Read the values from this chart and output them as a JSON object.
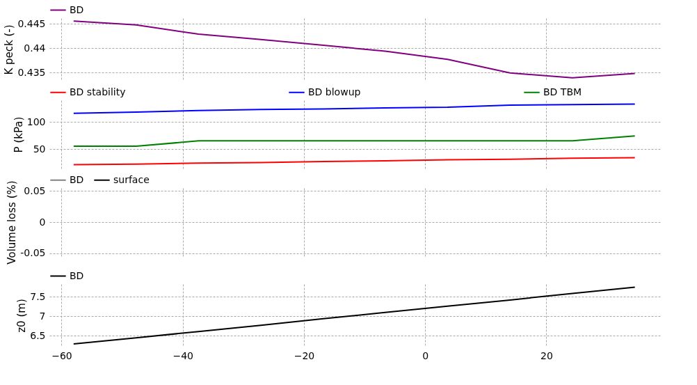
{
  "chart_data": [
    {
      "type": "line",
      "ylabel": "K peck (-)",
      "x": [
        -58,
        -47.7,
        -37.4,
        -27.1,
        -16.8,
        -6.6,
        3.7,
        14.0,
        24.3,
        34.6
      ],
      "xlim": [
        -62,
        39
      ],
      "xticks": [
        -60,
        -40,
        -20,
        0,
        20
      ],
      "ylim": [
        0.4333,
        0.4462
      ],
      "yticks": [
        0.435,
        0.44,
        0.445
      ],
      "grid": true,
      "legend": "top left",
      "tick_labels": "y",
      "series": [
        {
          "name": "BD",
          "color": "#800080",
          "values": [
            0.4456,
            0.4448,
            0.4429,
            0.4418,
            0.4406,
            0.4394,
            0.4377,
            0.4349,
            0.4339,
            0.4348
          ]
        }
      ]
    },
    {
      "type": "line",
      "ylabel": "P (kPa)",
      "x": [
        -58,
        -47.7,
        -37.4,
        -27.1,
        -16.8,
        -6.6,
        3.7,
        14.0,
        24.3,
        34.6
      ],
      "xlim": [
        -62,
        39
      ],
      "xticks": [
        -60,
        -40,
        -20,
        0,
        20
      ],
      "ylim": [
        14,
        140
      ],
      "yticks": [
        50,
        100
      ],
      "grid": true,
      "legend": "top",
      "tick_labels": "y",
      "series": [
        {
          "name": "BD stability",
          "color": "#ff0000",
          "values": [
            21,
            22,
            24,
            25,
            27,
            28,
            30,
            31,
            33,
            34
          ]
        },
        {
          "name": "BD blowup",
          "color": "#0000ff",
          "values": [
            116,
            118,
            121,
            123,
            124,
            126,
            127,
            131,
            132,
            133
          ]
        },
        {
          "name": "BD TBM",
          "color": "#008000",
          "values": [
            55,
            55,
            65,
            65,
            65,
            65,
            65,
            65,
            65,
            74
          ]
        }
      ]
    },
    {
      "type": "line",
      "ylabel": "Volume loss (%)",
      "ylim": [
        -0.055,
        0.055
      ],
      "yticks": [
        -0.05,
        0,
        0.05
      ],
      "grid": true,
      "legend": "top left",
      "tick_labels": "y",
      "series": [
        {
          "name": "BD",
          "color": "#808080"
        },
        {
          "name": "surface",
          "color": "#000000"
        }
      ]
    },
    {
      "type": "line",
      "ylabel": "z0 (m)",
      "x": [
        -58,
        -47.7,
        -37.4,
        -27.1,
        -16.8,
        -6.6,
        3.7,
        14.0,
        24.3,
        34.6
      ],
      "xlim": [
        -62,
        39
      ],
      "xticks": [
        {
          "value": -60,
          "label": "−60"
        },
        {
          "value": -40,
          "label": "−40"
        },
        {
          "value": -20,
          "label": "−20"
        },
        0,
        20
      ],
      "ylim": [
        6.22,
        7.83
      ],
      "yticks": [
        6.5,
        7,
        7.5
      ],
      "grid": true,
      "legend": "top left",
      "series": [
        {
          "name": "BD",
          "color": "#000000",
          "values": [
            6.29,
            6.45,
            6.61,
            6.77,
            6.94,
            7.1,
            7.26,
            7.42,
            7.59,
            7.75
          ]
        }
      ]
    }
  ]
}
